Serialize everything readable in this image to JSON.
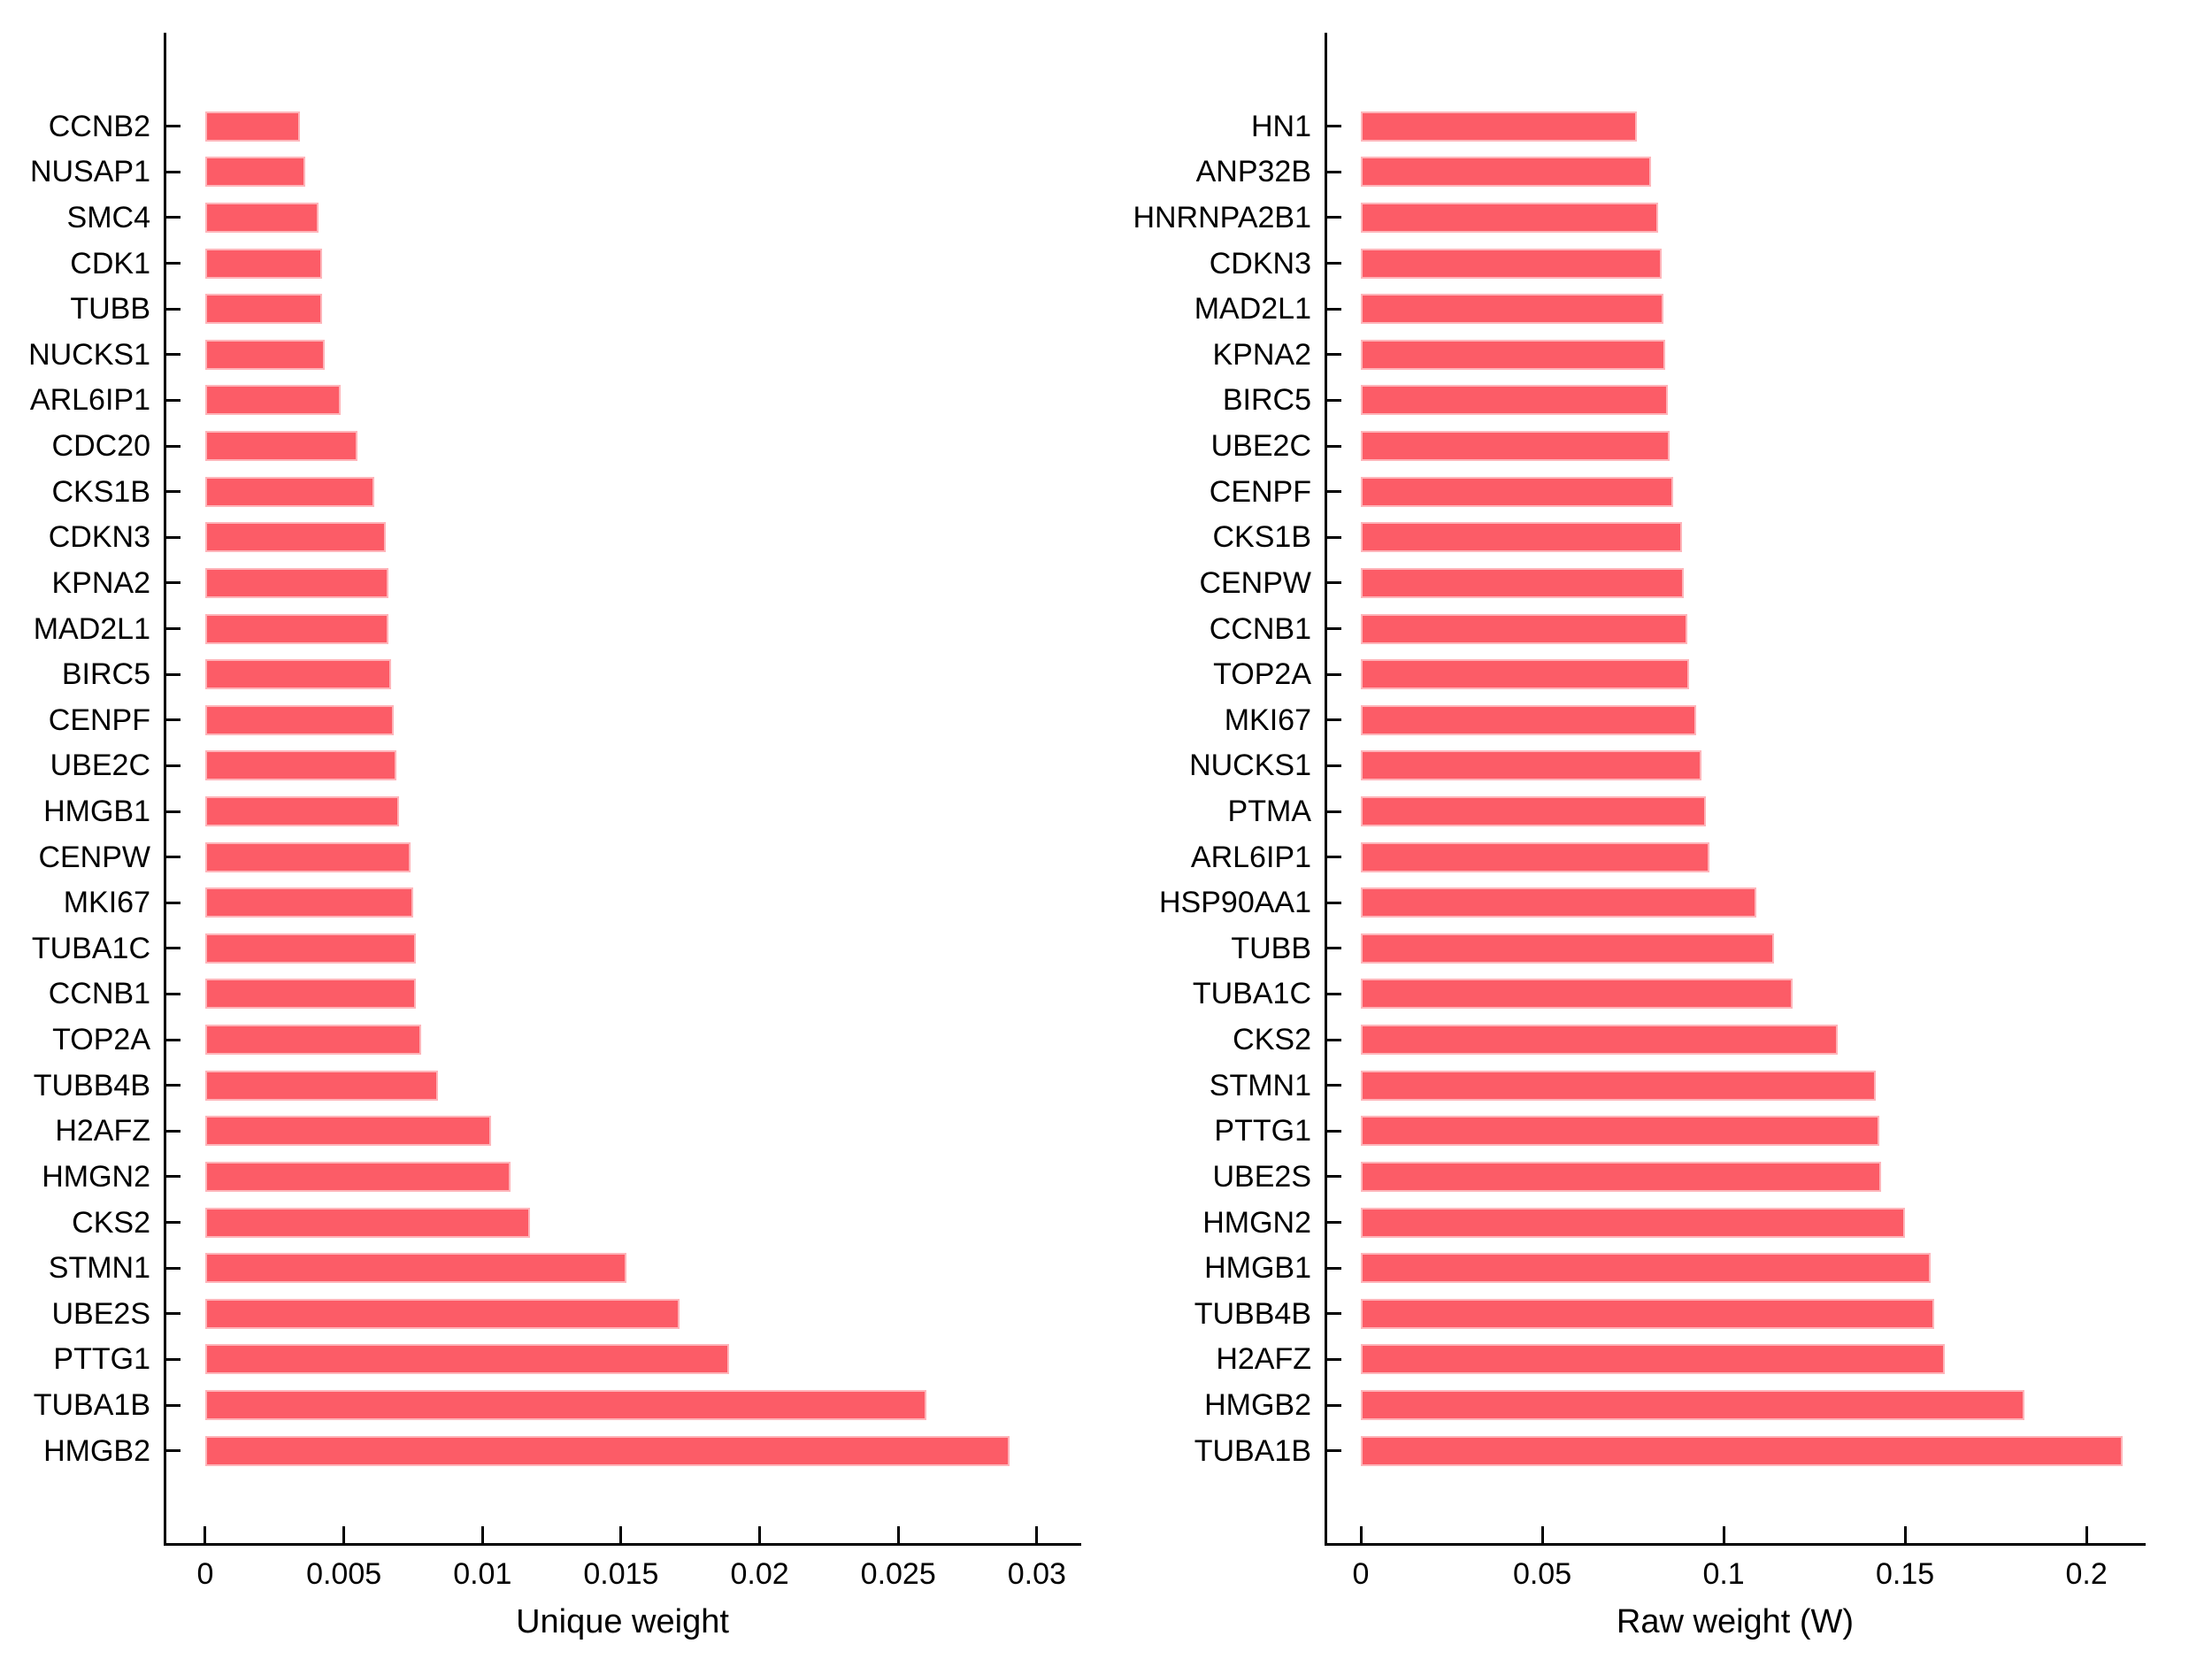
{
  "figure": {
    "background": "#ffffff",
    "bar_color": "#FC5C67",
    "axis_color": "#000000",
    "text_color": "#000000"
  },
  "chart_data": [
    {
      "type": "bar",
      "orientation": "horizontal",
      "title": "",
      "xlabel": "Unique weight",
      "ylabel": "",
      "grid": false,
      "legend": false,
      "xlim": [
        -0.0015,
        0.0316
      ],
      "xticks": [
        0,
        0.005,
        0.01,
        0.015,
        0.02,
        0.025,
        0.03
      ],
      "xtick_labels": [
        "0",
        "0.005",
        "0.01",
        "0.015",
        "0.02",
        "0.025",
        "0.03"
      ],
      "categories": [
        "CCNB2",
        "NUSAP1",
        "SMC4",
        "CDK1",
        "TUBB",
        "NUCKS1",
        "ARL6IP1",
        "CDC20",
        "CKS1B",
        "CDKN3",
        "KPNA2",
        "MAD2L1",
        "BIRC5",
        "CENPF",
        "UBE2C",
        "HMGB1",
        "CENPW",
        "MKI67",
        "TUBA1C",
        "CCNB1",
        "TOP2A",
        "TUBB4B",
        "H2AFZ",
        "HMGN2",
        "CKS2",
        "STMN1",
        "UBE2S",
        "PTTG1",
        "TUBA1B",
        "HMGB2"
      ],
      "values": [
        0.0034,
        0.0036,
        0.0041,
        0.0042,
        0.0042,
        0.0043,
        0.0049,
        0.0055,
        0.0061,
        0.0065,
        0.0066,
        0.0066,
        0.0067,
        0.0068,
        0.0069,
        0.007,
        0.0074,
        0.0075,
        0.0076,
        0.0076,
        0.0078,
        0.0084,
        0.0103,
        0.011,
        0.0117,
        0.0152,
        0.0171,
        0.0189,
        0.026,
        0.029
      ]
    },
    {
      "type": "bar",
      "orientation": "horizontal",
      "title": "",
      "xlabel": "Raw weight (W)",
      "ylabel": "",
      "grid": false,
      "legend": false,
      "xlim": [
        -0.01,
        0.2163
      ],
      "xticks": [
        0,
        0.05,
        0.1,
        0.15,
        0.2
      ],
      "xtick_labels": [
        "0",
        "0.05",
        "0.1",
        "0.15",
        "0.2"
      ],
      "categories": [
        "HN1",
        "ANP32B",
        "HNRNPA2B1",
        "CDKN3",
        "MAD2L1",
        "KPNA2",
        "BIRC5",
        "UBE2C",
        "CENPF",
        "CKS1B",
        "CENPW",
        "CCNB1",
        "TOP2A",
        "MKI67",
        "NUCKS1",
        "PTMA",
        "ARL6IP1",
        "HSP90AA1",
        "TUBB",
        "TUBA1C",
        "CKS2",
        "STMN1",
        "PTTG1",
        "UBE2S",
        "HMGN2",
        "HMGB1",
        "TUBB4B",
        "H2AFZ",
        "HMGB2",
        "TUBA1B"
      ],
      "values": [
        0.076,
        0.08,
        0.082,
        0.083,
        0.0835,
        0.084,
        0.0845,
        0.085,
        0.086,
        0.0885,
        0.089,
        0.09,
        0.0905,
        0.0925,
        0.094,
        0.095,
        0.096,
        0.109,
        0.114,
        0.119,
        0.1315,
        0.142,
        0.143,
        0.1435,
        0.15,
        0.157,
        0.158,
        0.161,
        0.183,
        0.21
      ]
    }
  ]
}
